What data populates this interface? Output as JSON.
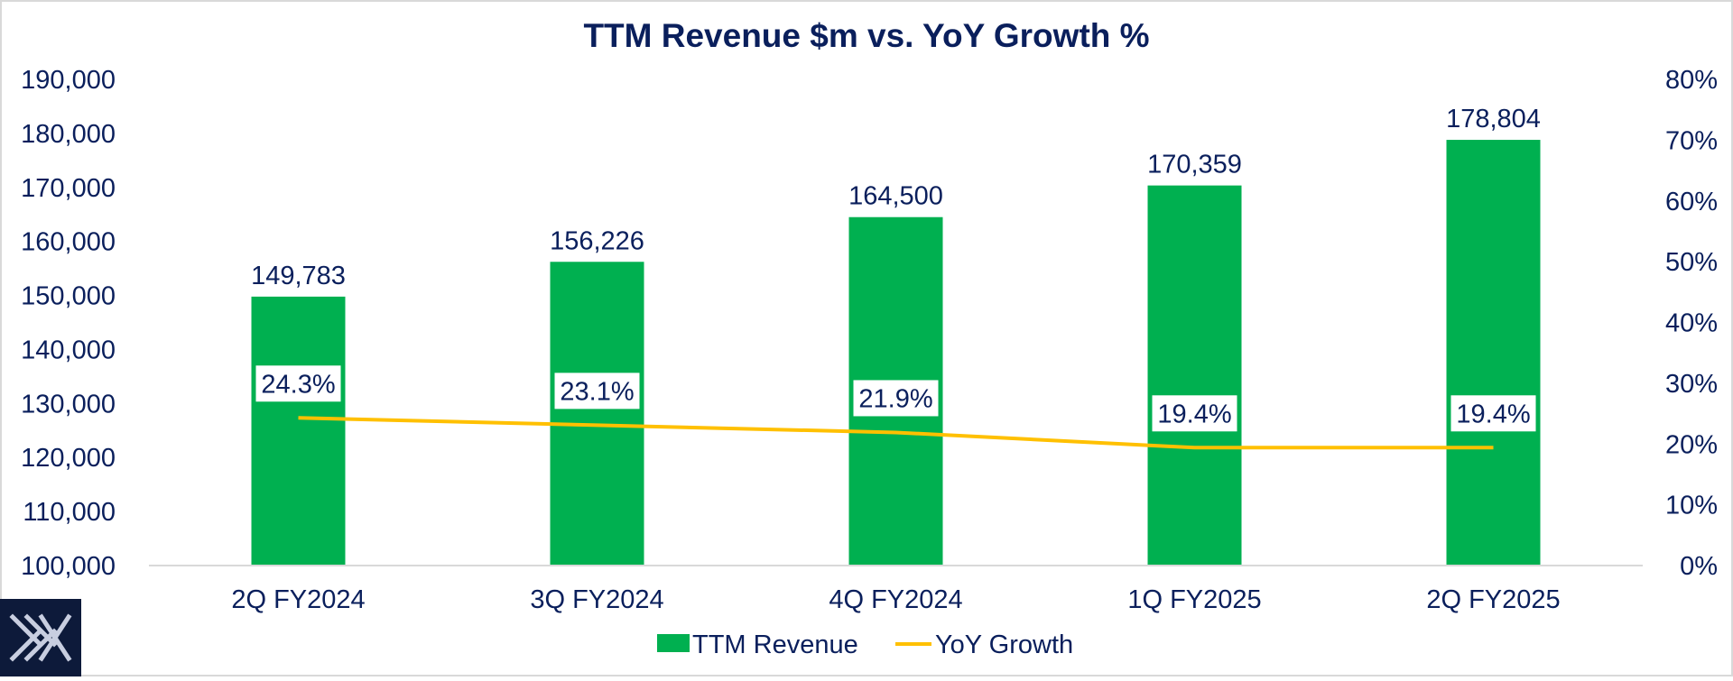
{
  "chart_data": {
    "type": "bar",
    "title": "TTM Revenue $m vs. YoY Growth %",
    "categories": [
      "2Q FY2024",
      "3Q FY2024",
      "4Q FY2024",
      "1Q FY2025",
      "2Q FY2025"
    ],
    "series": [
      {
        "name": "TTM Revenue",
        "type": "bar",
        "axis": "left",
        "values": [
          149783,
          156226,
          164500,
          170359,
          178804
        ],
        "labels": [
          "149,783",
          "156,226",
          "164,500",
          "170,359",
          "178,804"
        ],
        "color": "#00b050"
      },
      {
        "name": "YoY Growth",
        "type": "line",
        "axis": "right",
        "values": [
          24.3,
          23.1,
          21.9,
          19.4,
          19.4
        ],
        "labels": [
          "24.3%",
          "23.1%",
          "21.9%",
          "19.4%",
          "19.4%"
        ],
        "color": "#ffc000"
      }
    ],
    "y_left": {
      "min": 100000,
      "max": 190000,
      "step": 10000,
      "tick_labels": [
        "100,000",
        "110,000",
        "120,000",
        "130,000",
        "140,000",
        "150,000",
        "160,000",
        "170,000",
        "180,000",
        "190,000"
      ]
    },
    "y_right": {
      "min": 0,
      "max": 80,
      "step": 10,
      "tick_labels": [
        "0%",
        "10%",
        "20%",
        "30%",
        "40%",
        "50%",
        "60%",
        "70%",
        "80%"
      ]
    },
    "legend": {
      "position": "bottom",
      "entries": [
        "TTM Revenue",
        "YoY Growth"
      ]
    },
    "grid": false
  },
  "colors": {
    "text": "#0a1f5c",
    "axis": "#d9d9d9",
    "logo_bg": "#0d1a3a"
  },
  "logo": {
    "icon": "x-logo-icon"
  }
}
